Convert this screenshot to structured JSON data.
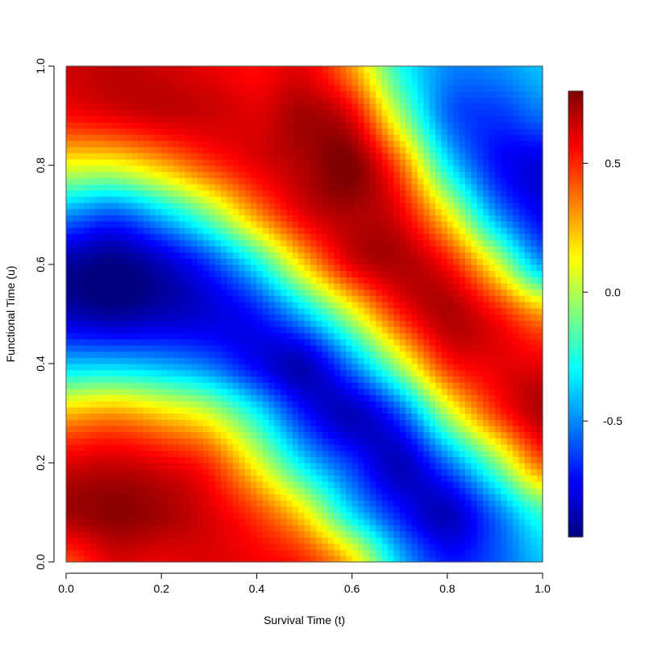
{
  "chart_data": {
    "type": "heatmap",
    "title": "",
    "xlabel": "Survival Time (t)",
    "ylabel": "Functional Time (u)",
    "xlim": [
      0,
      1
    ],
    "ylim": [
      0,
      1
    ],
    "x_ticks": [
      "0.0",
      "0.2",
      "0.4",
      "0.6",
      "0.8",
      "1.0"
    ],
    "y_ticks": [
      "0.0",
      "0.2",
      "0.4",
      "0.6",
      "0.8",
      "1.0"
    ],
    "grid": false,
    "colorbar": {
      "range": [
        -0.95,
        0.78
      ],
      "ticks": [
        "-0.5",
        "0.0",
        "0.5"
      ],
      "palette": "jet",
      "colors": [
        "#00007F",
        "#0000FF",
        "#007FFF",
        "#00FFFF",
        "#7FFF7F",
        "#FFFF00",
        "#FF7F00",
        "#FF0000",
        "#7F0000"
      ]
    },
    "x": [
      0.0,
      0.1,
      0.2,
      0.3,
      0.4,
      0.5,
      0.6,
      0.7,
      0.8,
      0.9,
      1.0
    ],
    "y": [
      0.0,
      0.1,
      0.2,
      0.3,
      0.4,
      0.5,
      0.6,
      0.7,
      0.8,
      0.9,
      1.0
    ],
    "z": [
      [
        0.45,
        0.62,
        0.6,
        0.62,
        0.58,
        0.5,
        0.2,
        -0.4,
        -0.7,
        -0.6,
        -0.4
      ],
      [
        0.72,
        0.76,
        0.72,
        0.62,
        0.45,
        0.15,
        -0.35,
        -0.7,
        -0.85,
        -0.55,
        -0.2
      ],
      [
        0.62,
        0.65,
        0.6,
        0.48,
        0.1,
        -0.35,
        -0.65,
        -0.85,
        -0.55,
        -0.1,
        0.4
      ],
      [
        0.25,
        0.3,
        0.2,
        0.05,
        -0.3,
        -0.7,
        -0.85,
        -0.6,
        0.0,
        0.45,
        0.7
      ],
      [
        -0.4,
        -0.4,
        -0.45,
        -0.55,
        -0.75,
        -0.85,
        -0.5,
        0.0,
        0.5,
        0.6,
        0.6
      ],
      [
        -0.85,
        -0.9,
        -0.85,
        -0.8,
        -0.7,
        -0.4,
        0.05,
        0.5,
        0.7,
        0.55,
        0.3
      ],
      [
        -0.9,
        -0.95,
        -0.85,
        -0.65,
        -0.3,
        0.2,
        0.6,
        0.7,
        0.55,
        0.1,
        -0.45
      ],
      [
        -0.5,
        -0.6,
        -0.4,
        -0.1,
        0.3,
        0.6,
        0.7,
        0.6,
        0.15,
        -0.45,
        -0.75
      ],
      [
        0.1,
        0.1,
        0.25,
        0.45,
        0.6,
        0.7,
        0.78,
        0.4,
        -0.3,
        -0.7,
        -0.8
      ],
      [
        0.55,
        0.6,
        0.65,
        0.65,
        0.62,
        0.72,
        0.6,
        0.0,
        -0.55,
        -0.65,
        -0.55
      ],
      [
        0.65,
        0.68,
        0.65,
        0.6,
        0.55,
        0.6,
        0.3,
        -0.25,
        -0.5,
        -0.5,
        -0.4
      ]
    ]
  }
}
